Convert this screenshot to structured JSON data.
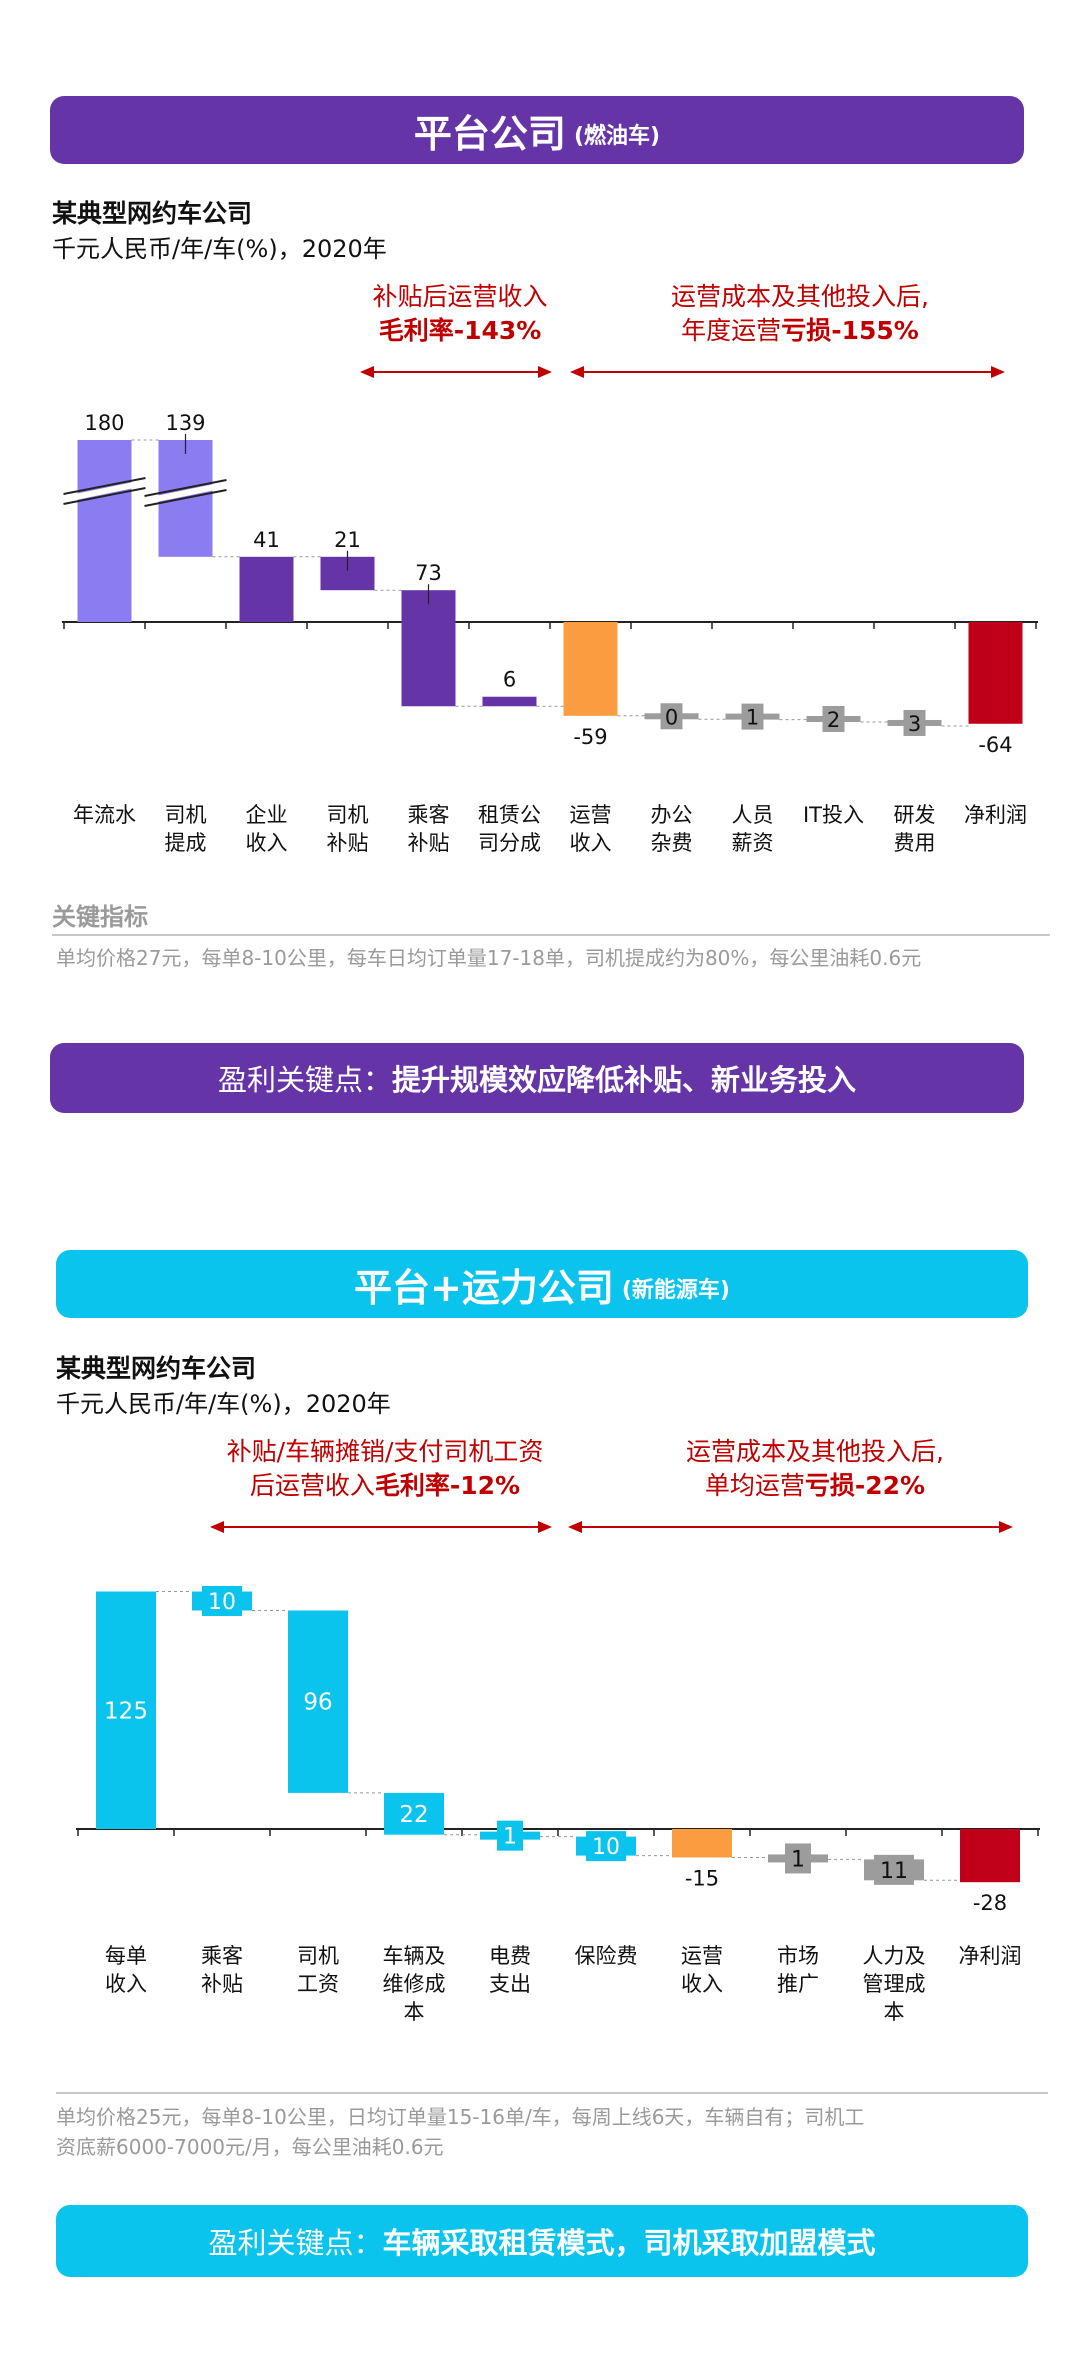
{
  "section1": {
    "banner": {
      "title": "平台公司",
      "sub": "(燃油车)"
    },
    "subhead": "某典型网约车公司",
    "unit": "千元人民币/年/车(%)，2020年",
    "anno_left": {
      "line1": "补贴后运营收入",
      "line2": "毛利率-143%"
    },
    "anno_right": {
      "line1": "运营成本及其他投入后,",
      "line2a": "年度运营",
      "line2b": "亏损-155%"
    },
    "key_label": "关键指标",
    "note": "单均价格27元，每单8-10公里，每车日均订单量17-18单，司机提成约为80%，每公里油耗0.6元",
    "keypoint": {
      "prefix": "盈利关键点：",
      "bold": "提升规模效应降低补贴、新业务投入"
    }
  },
  "section2": {
    "banner": {
      "title": "平台+运力公司",
      "sub": "(新能源车)"
    },
    "subhead": "某典型网约车公司",
    "unit": "千元人民币/年/车(%)，2020年",
    "anno_left": {
      "line1": "补贴/车辆摊销/支付司机工资",
      "line2a": "后运营收入",
      "line2b": "毛利率-12%"
    },
    "anno_right": {
      "line1": "运营成本及其他投入后,",
      "line2a": "单均运营",
      "line2b": "亏损-22%"
    },
    "note_line1": "单均价格25元，每单8-10公里，日均订单量15-16单/车，每周上线6天，车辆自有；司机工",
    "note_line2": "资底薪6000-7000元/月，每公里油耗0.6元",
    "keypoint": {
      "prefix": "盈利关键点：",
      "bold": "车辆采取租赁模式，司机采取加盟模式"
    }
  },
  "colors": {
    "purple": "#6535a8",
    "cyan": "#0bc4ee",
    "light_purple": "#8c7cf2",
    "orange": "#fb9c40",
    "red": "#c00018",
    "gray": "#9c9c9c",
    "annotation_red": "#c00000"
  },
  "chart_data": [
    {
      "type": "waterfall",
      "title": "平台公司 (燃油车)",
      "categories": [
        "年流水",
        "司机\n提成",
        "企业\n收入",
        "司机\n补贴",
        "乘客\n补贴",
        "租赁公\n司分成",
        "运营\n收入",
        "办公\n杂费",
        "人员\n薪资",
        "IT投入",
        "研发\n费用",
        "净利润"
      ],
      "values": [
        180,
        139,
        41,
        21,
        73,
        6,
        -59,
        0,
        1,
        2,
        3,
        -64
      ],
      "value_labels": [
        "180",
        "139",
        "41",
        "21",
        "73",
        "6",
        "-59",
        "0",
        "1",
        "2",
        "3",
        "-64"
      ],
      "kinds": [
        "total_broken",
        "step_broken",
        "total",
        "step",
        "step",
        "step",
        "total",
        "step",
        "step",
        "step",
        "step",
        "total"
      ],
      "colors": [
        "#8c7cf2",
        "#8c7cf2",
        "#6535a8",
        "#6535a8",
        "#6535a8",
        "#6535a8",
        "#fb9c40",
        "#9c9c9c",
        "#9c9c9c",
        "#9c9c9c",
        "#9c9c9c",
        "#c00018"
      ]
    },
    {
      "type": "waterfall",
      "title": "平台+运力公司 (新能源车)",
      "categories": [
        "每单\n收入",
        "乘客\n补贴",
        "司机\n工资",
        "车辆及\n维修成\n本",
        "电费\n支出",
        "保险费",
        "运营\n收入",
        "市场\n推广",
        "人力及\n管理成\n本",
        "净利润"
      ],
      "values": [
        125,
        10,
        96,
        22,
        1,
        10,
        -15,
        1,
        11,
        -28
      ],
      "value_labels": [
        "125",
        "10",
        "96",
        "22",
        "1",
        "10",
        "-15",
        "1",
        "11",
        "-28"
      ],
      "colors": [
        "#0bc4ee",
        "#0bc4ee",
        "#0bc4ee",
        "#0bc4ee",
        "#0bc4ee",
        "#0bc4ee",
        "#fb9c40",
        "#9c9c9c",
        "#9c9c9c",
        "#c00018"
      ]
    }
  ]
}
